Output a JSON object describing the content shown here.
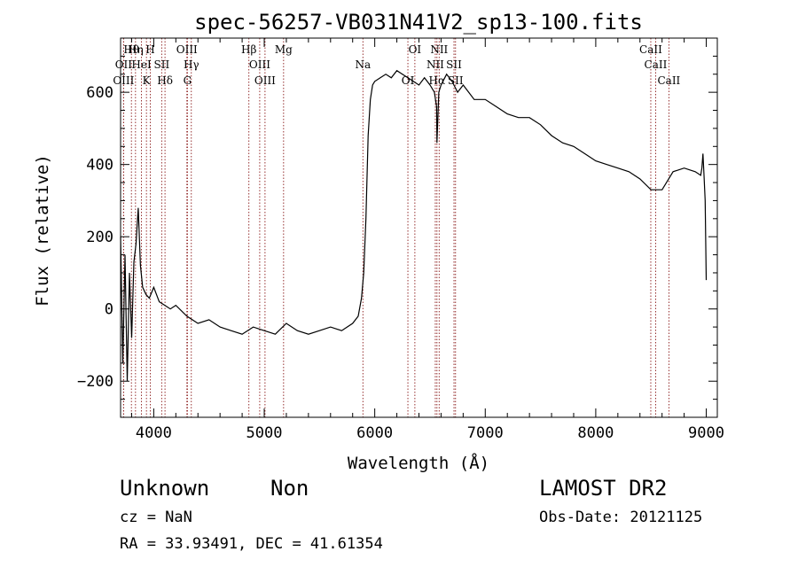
{
  "chart_data": {
    "type": "line",
    "title": "spec-56257-VB031N41V2_sp13-100.fits",
    "xlabel": "Wavelength (Å)",
    "ylabel": "Flux (relative)",
    "xlim": [
      3700,
      9100
    ],
    "ylim": [
      -300,
      750
    ],
    "x_ticks": [
      4000,
      5000,
      6000,
      7000,
      8000,
      9000
    ],
    "y_ticks": [
      -200,
      0,
      200,
      400,
      600
    ],
    "grid": false,
    "line_color": "#000000",
    "marker_color": "#8b1a1a",
    "spectrum": {
      "x": [
        3700,
        3720,
        3740,
        3760,
        3780,
        3800,
        3820,
        3840,
        3860,
        3880,
        3900,
        3930,
        3960,
        4000,
        4050,
        4100,
        4150,
        4200,
        4300,
        4400,
        4500,
        4600,
        4700,
        4800,
        4900,
        5000,
        5100,
        5200,
        5300,
        5400,
        5500,
        5600,
        5700,
        5800,
        5850,
        5880,
        5900,
        5920,
        5940,
        5960,
        5980,
        6000,
        6050,
        6100,
        6150,
        6200,
        6250,
        6300,
        6350,
        6400,
        6450,
        6500,
        6540,
        6560,
        6563,
        6580,
        6600,
        6650,
        6700,
        6750,
        6800,
        6850,
        6900,
        7000,
        7100,
        7200,
        7300,
        7400,
        7500,
        7600,
        7700,
        7800,
        7900,
        8000,
        8100,
        8200,
        8300,
        8400,
        8500,
        8600,
        8700,
        8800,
        8900,
        8950,
        8960,
        8970,
        8980,
        8990,
        9000
      ],
      "y": [
        200,
        -150,
        150,
        -200,
        100,
        -80,
        130,
        180,
        280,
        120,
        60,
        40,
        30,
        60,
        20,
        10,
        0,
        10,
        -20,
        -40,
        -30,
        -50,
        -60,
        -70,
        -50,
        -60,
        -70,
        -40,
        -60,
        -70,
        -60,
        -50,
        -60,
        -40,
        -20,
        30,
        100,
        250,
        480,
        580,
        620,
        630,
        640,
        650,
        640,
        660,
        650,
        640,
        630,
        620,
        640,
        620,
        600,
        560,
        460,
        600,
        620,
        650,
        630,
        600,
        620,
        600,
        580,
        580,
        560,
        540,
        530,
        530,
        510,
        480,
        460,
        450,
        430,
        410,
        400,
        390,
        380,
        360,
        330,
        330,
        380,
        390,
        380,
        370,
        390,
        430,
        370,
        300,
        80
      ]
    },
    "lines": [
      {
        "name": "Hθ",
        "wl": 3798
      },
      {
        "name": "OII",
        "wl": 3727
      },
      {
        "name": "OIII",
        "wl": 3727
      },
      {
        "name": "Hη",
        "wl": 3835
      },
      {
        "name": "HeI",
        "wl": 3889
      },
      {
        "name": "K",
        "wl": 3934
      },
      {
        "name": "H",
        "wl": 3969
      },
      {
        "name": "SII",
        "wl": 4072
      },
      {
        "name": "Hδ",
        "wl": 4102
      },
      {
        "name": "OIII",
        "wl": 4300
      },
      {
        "name": "Hγ",
        "wl": 4340
      },
      {
        "name": "G",
        "wl": 4305
      },
      {
        "name": "Hβ",
        "wl": 4861
      },
      {
        "name": "OIII",
        "wl": 4959
      },
      {
        "name": "OIII",
        "wl": 5007
      },
      {
        "name": "Mg",
        "wl": 5175
      },
      {
        "name": "Na",
        "wl": 5893
      },
      {
        "name": "OI",
        "wl": 6300
      },
      {
        "name": "OI",
        "wl": 6363
      },
      {
        "name": "NII",
        "wl": 6548
      },
      {
        "name": "Hα",
        "wl": 6563
      },
      {
        "name": "NII",
        "wl": 6583
      },
      {
        "name": "SII",
        "wl": 6717
      },
      {
        "name": "SII",
        "wl": 6731
      },
      {
        "name": "CaII",
        "wl": 8498
      },
      {
        "name": "CaII",
        "wl": 8542
      },
      {
        "name": "CaII",
        "wl": 8662
      }
    ]
  },
  "info": {
    "obj_class": "Unknown",
    "obj_subclass": "Non",
    "survey": "LAMOST DR2",
    "cz": "cz = NaN",
    "obs_date": "Obs-Date: 20121125",
    "ra_dec": "RA =  33.93491, DEC =  41.61354"
  }
}
